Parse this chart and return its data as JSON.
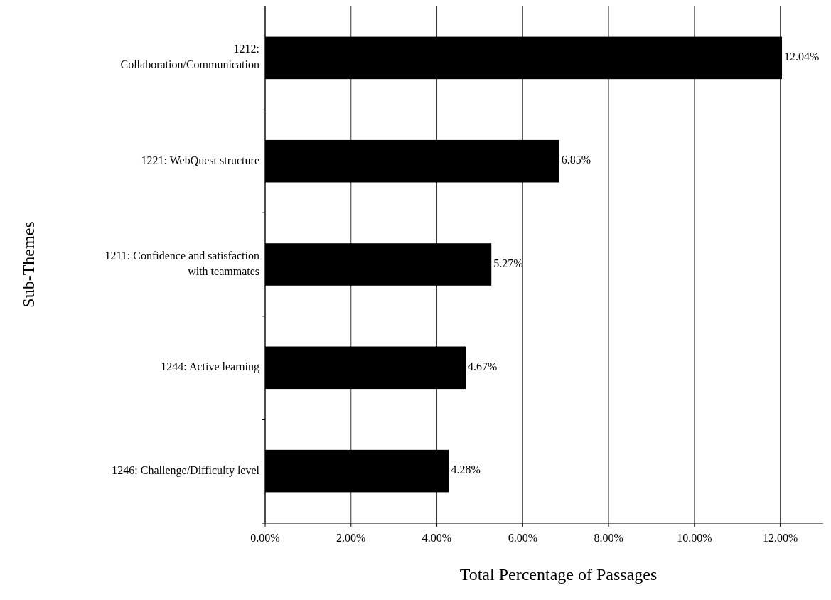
{
  "chart_data": {
    "type": "bar",
    "orientation": "horizontal",
    "xlabel": "Total Percentage of Passages",
    "ylabel": "Sub-Themes",
    "categories": [
      "1212:\nCollaboration/Communication",
      "1221: WebQuest structure",
      "1211: Confidence and satisfaction\nwith teammates",
      "1244: Active learning",
      "1246: Challenge/Difficulty level"
    ],
    "values": [
      12.04,
      6.85,
      5.27,
      4.67,
      4.28
    ],
    "value_labels": [
      "12.04%",
      "6.85%",
      "5.27%",
      "4.67%",
      "4.28%"
    ],
    "color": "#000000",
    "xlim": [
      0,
      13
    ],
    "xticks": [
      {
        "value": 0,
        "label": "0.00%"
      },
      {
        "value": 2,
        "label": "2.00%"
      },
      {
        "value": 4,
        "label": "4.00%"
      },
      {
        "value": 6,
        "label": "6.00%"
      },
      {
        "value": 8,
        "label": "8.00%"
      },
      {
        "value": 10,
        "label": "10.00%"
      },
      {
        "value": 12,
        "label": "12.00%"
      }
    ],
    "grid": "x"
  }
}
